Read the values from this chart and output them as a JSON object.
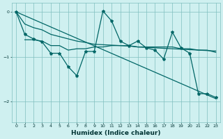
{
  "xlabel": "Humidex (Indice chaleur)",
  "bg_color": "#cff0f0",
  "grid_color": "#7fbfbf",
  "line_color": "#006666",
  "xlim": [
    -0.5,
    23.5
  ],
  "ylim": [
    -2.45,
    0.2
  ],
  "yticks": [
    0,
    -1,
    -2
  ],
  "xticks": [
    0,
    1,
    2,
    3,
    4,
    5,
    6,
    7,
    8,
    9,
    10,
    11,
    12,
    13,
    14,
    15,
    16,
    17,
    18,
    19,
    20,
    21,
    22,
    23
  ],
  "line_trend_x": [
    0,
    23
  ],
  "line_trend_y": [
    0.0,
    -1.93
  ],
  "line_flat_x": [
    1,
    2,
    3,
    4,
    5,
    6,
    7,
    8,
    9,
    10,
    11,
    12,
    13,
    14,
    15,
    16,
    17,
    18,
    19,
    20,
    21,
    22,
    23
  ],
  "line_flat_y": [
    -0.62,
    -0.62,
    -0.65,
    -0.75,
    -0.75,
    -0.85,
    -0.82,
    -0.82,
    -0.78,
    -0.78,
    -0.75,
    -0.75,
    -0.75,
    -0.78,
    -0.78,
    -0.78,
    -0.78,
    -0.78,
    -0.82,
    -0.82,
    -0.85,
    -0.85,
    -0.9
  ],
  "line_gentle_x": [
    0,
    1,
    2,
    3,
    4,
    5,
    6,
    7,
    8,
    9,
    10,
    11,
    12,
    13,
    14,
    15,
    16,
    17,
    18,
    19,
    20,
    21,
    22,
    23
  ],
  "line_gentle_y": [
    0.0,
    -0.27,
    -0.35,
    -0.4,
    -0.5,
    -0.55,
    -0.6,
    -0.65,
    -0.68,
    -0.72,
    -0.73,
    -0.74,
    -0.75,
    -0.76,
    -0.78,
    -0.79,
    -0.8,
    -0.81,
    -0.82,
    -0.83,
    -0.84,
    -0.85,
    -0.86,
    -0.87
  ],
  "line_zigzag_x": [
    0,
    1,
    2,
    3,
    4,
    5,
    6,
    7,
    8,
    9,
    10,
    11,
    12,
    13,
    14,
    15,
    16,
    17,
    18,
    19,
    20,
    21,
    22,
    23
  ],
  "line_zigzag_y": [
    0.0,
    -0.5,
    -0.6,
    -0.67,
    -0.92,
    -0.92,
    -1.22,
    -1.42,
    -0.88,
    -0.88,
    0.02,
    -0.2,
    -0.65,
    -0.75,
    -0.65,
    -0.8,
    -0.85,
    -1.05,
    -0.45,
    -0.8,
    -0.92,
    -1.82,
    -1.82,
    -1.9
  ]
}
